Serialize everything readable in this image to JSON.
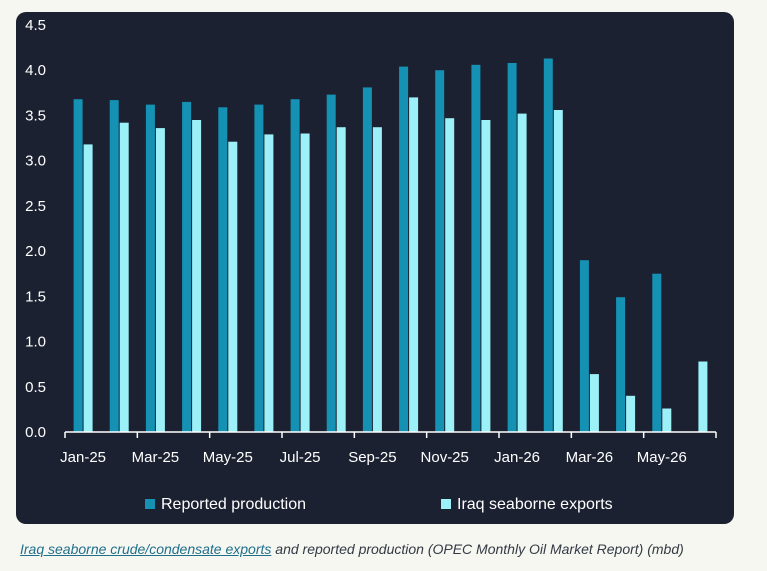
{
  "chart_data": {
    "type": "bar",
    "categories": [
      "Jan-25",
      "Feb-25",
      "Mar-25",
      "Apr-25",
      "May-25",
      "Jun-25",
      "Jul-25",
      "Aug-25",
      "Sep-25",
      "Oct-25",
      "Nov-25",
      "Dec-25",
      "Jan-26",
      "Feb-26",
      "Mar-26",
      "Apr-26",
      "May-26",
      "Jun-26"
    ],
    "tick_labels": [
      "Jan-25",
      "",
      "Mar-25",
      "",
      "May-25",
      "",
      "Jul-25",
      "",
      "Sep-25",
      "",
      "Nov-25",
      "",
      "Jan-26",
      "",
      "Mar-26",
      "",
      "May-26",
      ""
    ],
    "series": [
      {
        "name": "Reported production",
        "color": "#1491b3",
        "values": [
          3.68,
          3.67,
          3.62,
          3.65,
          3.59,
          3.62,
          3.68,
          3.73,
          3.81,
          4.04,
          4.0,
          4.06,
          4.08,
          4.13,
          1.9,
          1.49,
          1.75,
          null
        ]
      },
      {
        "name": "Iraq seaborne exports",
        "color": "#9cf0f8",
        "values": [
          3.18,
          3.42,
          3.36,
          3.45,
          3.21,
          3.29,
          3.3,
          3.37,
          3.37,
          3.7,
          3.47,
          3.45,
          3.52,
          3.56,
          0.64,
          0.4,
          0.26,
          0.78
        ]
      }
    ],
    "ylim": [
      0,
      4.5
    ],
    "yticks": [
      "0.0",
      "0.5",
      "1.0",
      "1.5",
      "2.0",
      "2.5",
      "3.0",
      "3.5",
      "4.0",
      "4.5"
    ],
    "title": "",
    "xlabel": "",
    "ylabel": "",
    "legend_position": "bottom",
    "grid": false
  },
  "caption": {
    "link_text": "Iraq seaborne crude/condensate exports",
    "rest_text": " and reported production (OPEC Monthly Oil Market Report) (mbd)"
  },
  "colors": {
    "panel_background": "#1b2130",
    "page_background": "#f7f7f2",
    "axis": "#ffffff",
    "text": "#ffffff"
  }
}
